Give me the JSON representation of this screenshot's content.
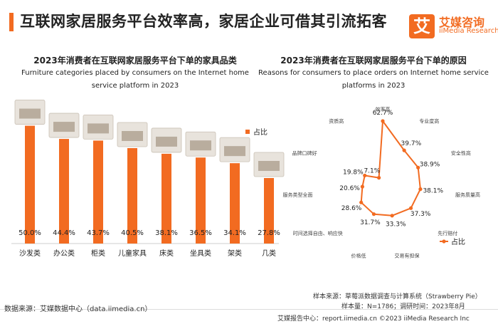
{
  "header": {
    "title": "互联网家居服务平台效率高，家居企业可借其引流拓客",
    "logo_mark": "艾",
    "logo_cn": "艾媒咨询",
    "logo_en": "iiMedia Research",
    "accent_color": "#f26b21"
  },
  "left_chart": {
    "title_cn": "2023年消费者在互联网家居服务平台下单的家具品类",
    "title_en": "Furniture categories placed by consumers on the Internet home service platform in 2023"
  },
  "right_chart": {
    "title_cn": "2023年消费者在互联网家居服务平台下单的原因",
    "title_en": "Reasons for consumers to place orders on Internet home service platforms in 2023"
  },
  "chart_data": [
    {
      "type": "bar",
      "categories": [
        "沙发类",
        "办公类",
        "柜类",
        "儿童家具",
        "床类",
        "坐具类",
        "架类",
        "几类"
      ],
      "series": [
        {
          "name": "占比",
          "values": [
            50.0,
            44.4,
            43.7,
            40.5,
            38.1,
            36.5,
            34.1,
            27.8
          ]
        }
      ],
      "value_labels": [
        "50.0%",
        "44.4%",
        "43.7%",
        "40.5%",
        "38.1%",
        "36.5%",
        "34.1%",
        "27.8%"
      ],
      "legend": "right",
      "color": "#f26b21",
      "ylim": [
        0,
        55
      ]
    },
    {
      "type": "line",
      "subtype": "radar",
      "categories": [
        "效率高",
        "专业度高",
        "安全性高",
        "服务质量高",
        "先行赔付",
        "交易有担保",
        "价格低",
        "时间选择自由、响应快",
        "服务类型全面",
        "品牌口碑好",
        "资质高"
      ],
      "series": [
        {
          "name": "占比",
          "values": [
            62.7,
            39.7,
            38.9,
            38.1,
            37.3,
            33.3,
            31.7,
            28.6,
            20.6,
            19.8,
            7.1
          ]
        }
      ],
      "value_labels": [
        "62.7%",
        "39.7%",
        "38.9%",
        "38.1%",
        "37.3%",
        "33.3%",
        "31.7%",
        "28.6%",
        "20.6%",
        "19.8%",
        "7.1%"
      ],
      "legend": "bottom-right",
      "color": "#f26b21"
    }
  ],
  "footer": {
    "source_left": "数据来源：艾媒数据中心（data.iimedia.cn）",
    "sample_source": "样本来源：草莓派数据调查与计算系统（Strawberry Pie）",
    "sample_info": "样本量：N=1786；调研时间：2023年8月",
    "copyright": "艾媒报告中心：report.iimedia.cn    ©2023  iiMedia Research  Inc"
  }
}
